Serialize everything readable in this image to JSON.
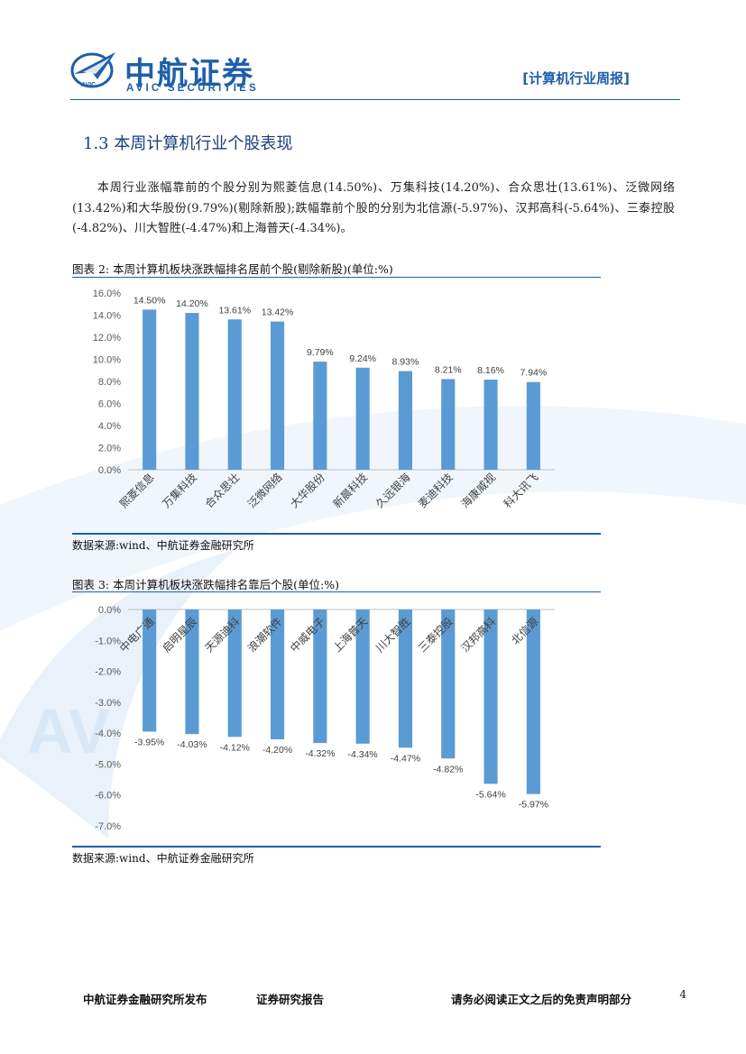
{
  "header": {
    "logo_text": "AVIC",
    "brand_cn": "中航证券",
    "brand_en": "AVIC SECURITIES",
    "report_type": "[计算机行业周报]",
    "brand_color": "#1e5faa"
  },
  "section": {
    "title": "1.3 本周计算机行业个股表现",
    "paragraph": "本周行业涨幅靠前的个股分别为熙菱信息(14.50%)、万集科技(14.20%)、合众思壮(13.61%)、泛微网络(13.42%)和大华股份(9.79%)(剔除新股);跌幅靠前个股的分别为北信源(-5.97%)、汉邦高科(-5.64%)、三泰控股(-4.82%)、川大智胜(-4.47%)和上海普天(-4.34%)。"
  },
  "figure2": {
    "caption": "图表 2: 本周计算机板块涨跌幅排名居前个股(剔除新股)(单位:%)",
    "source": "数据来源:wind、中航证券金融研究所"
  },
  "figure3": {
    "caption": "图表 3: 本周计算机板块涨跌幅排名靠后个股(单位:%)",
    "source": "数据来源:wind、中航证券金融研究所"
  },
  "chart_data": [
    {
      "type": "bar",
      "categories": [
        "熙菱信息",
        "万集科技",
        "合众思壮",
        "泛微网络",
        "大华股份",
        "新晨科技",
        "久远银海",
        "麦迪科技",
        "海康威视",
        "科大讯飞"
      ],
      "values": [
        14.5,
        14.2,
        13.61,
        13.42,
        9.79,
        9.24,
        8.93,
        8.21,
        8.16,
        7.94
      ],
      "data_labels": [
        "14.50%",
        "14.20%",
        "13.61%",
        "13.42%",
        "9.79%",
        "9.24%",
        "8.93%",
        "8.21%",
        "8.16%",
        "7.94%"
      ],
      "ylim": [
        0,
        16
      ],
      "yticks": [
        "0.0%",
        "2.0%",
        "4.0%",
        "6.0%",
        "8.0%",
        "10.0%",
        "12.0%",
        "14.0%",
        "16.0%"
      ],
      "bar_color": "#5b9bd5",
      "grid": false,
      "legend": "none"
    },
    {
      "type": "bar",
      "categories": [
        "中电广通",
        "启明星辰",
        "天源迪科",
        "浪潮软件",
        "中威电子",
        "上海普天",
        "川大智胜",
        "三泰控股",
        "汉邦高科",
        "北信源"
      ],
      "values": [
        -3.95,
        -4.03,
        -4.12,
        -4.2,
        -4.32,
        -4.34,
        -4.47,
        -4.82,
        -5.64,
        -5.97
      ],
      "data_labels": [
        "-3.95%",
        "-4.03%",
        "-4.12%",
        "-4.20%",
        "-4.32%",
        "-4.34%",
        "-4.47%",
        "-4.82%",
        "-5.64%",
        "-5.97%"
      ],
      "ylim": [
        -7,
        0
      ],
      "yticks": [
        "0.0%",
        "-1.0%",
        "-2.0%",
        "-3.0%",
        "-4.0%",
        "-5.0%",
        "-6.0%",
        "-7.0%"
      ],
      "bar_color": "#5b9bd5",
      "grid": false,
      "legend": "none"
    }
  ],
  "footer": {
    "publisher": "中航证券金融研究所发布",
    "report_kind": "证券研究报告",
    "disclaimer": "请务必阅读正文之后的免责声明部分",
    "page_number": "4"
  }
}
